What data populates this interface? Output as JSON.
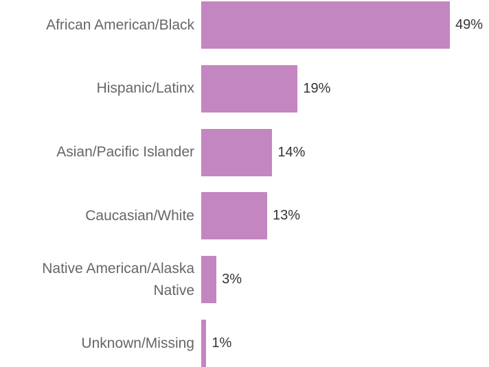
{
  "chart_data": {
    "type": "bar",
    "orientation": "horizontal",
    "categories": [
      "African American/Black",
      "Hispanic/Latinx",
      "Asian/Pacific Islander",
      "Caucasian/White",
      "Native American/Alaska Native",
      "Unknown/Missing"
    ],
    "values": [
      49,
      19,
      14,
      13,
      3,
      1
    ],
    "value_labels": [
      "49%",
      "19%",
      "14%",
      "13%",
      "3%",
      "1%"
    ],
    "color": "#c386c0"
  }
}
